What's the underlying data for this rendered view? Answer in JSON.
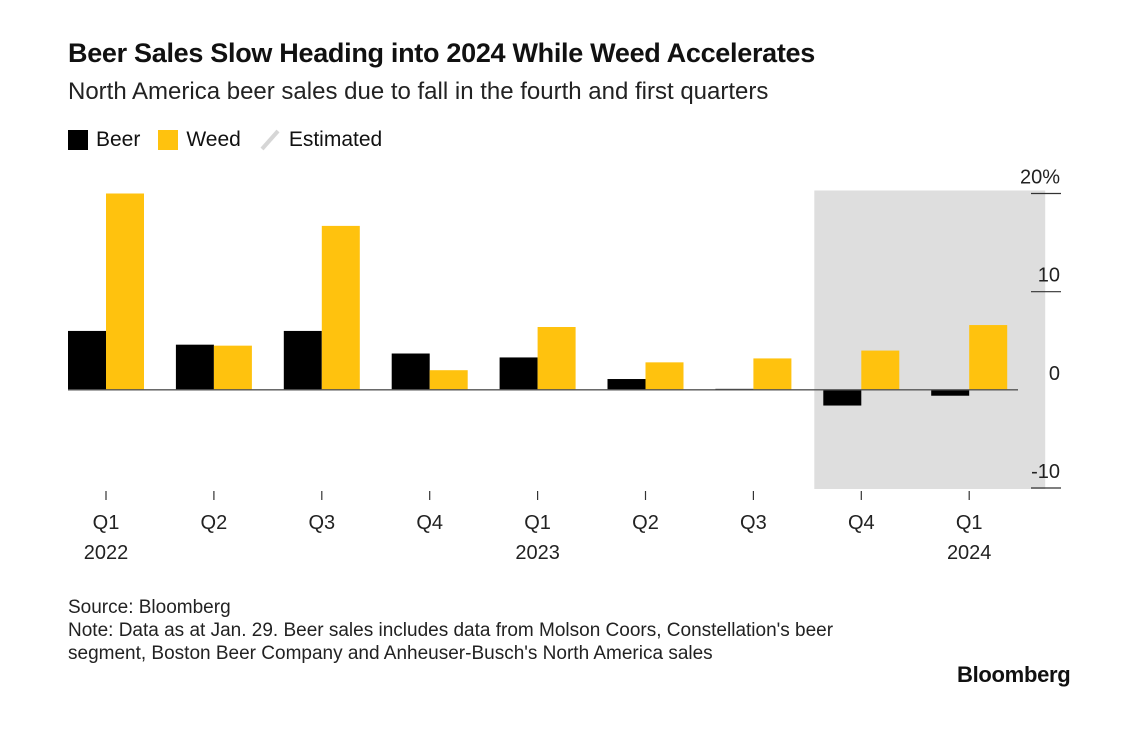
{
  "header": {
    "title": "Beer Sales Slow Heading into 2024 While Weed Accelerates",
    "subtitle": "North America beer sales due to fall in the fourth and first quarters"
  },
  "legend": {
    "beer": "Beer",
    "weed": "Weed",
    "estimated": "Estimated"
  },
  "colors": {
    "beer": "#000000",
    "weed": "#ffc20e",
    "estimated_band": "#dedede",
    "axis": "#555555"
  },
  "footer": {
    "source": "Source: Bloomberg",
    "note": "Note: Data as at Jan. 29. Beer sales includes data from Molson Coors, Constellation's beer segment, Boston Beer Company and Anheuser-Busch's North America sales"
  },
  "brand": "Bloomberg",
  "chart_data": {
    "type": "bar",
    "categories": [
      "Q1",
      "Q2",
      "Q3",
      "Q4",
      "Q1",
      "Q2",
      "Q3",
      "Q4",
      "Q1"
    ],
    "category_years": [
      "2022",
      "",
      "",
      "",
      "2023",
      "",
      "",
      "",
      "2024"
    ],
    "series": [
      {
        "name": "Beer",
        "values": [
          6.0,
          4.6,
          6.0,
          3.7,
          3.3,
          1.1,
          0.1,
          -1.6,
          -0.6
        ]
      },
      {
        "name": "Weed",
        "values": [
          20.0,
          4.5,
          16.7,
          2.0,
          6.4,
          2.8,
          3.2,
          4.0,
          6.6
        ]
      }
    ],
    "estimated_categories": [
      7,
      8
    ],
    "ylim": [
      -10,
      20
    ],
    "yticks": [
      {
        "value": 20,
        "label": "20%"
      },
      {
        "value": 10,
        "label": "10"
      },
      {
        "value": 0,
        "label": "0"
      },
      {
        "value": -10,
        "label": "-10"
      }
    ],
    "xlabel": "",
    "ylabel": "",
    "axis_side": "right",
    "grid": false
  }
}
